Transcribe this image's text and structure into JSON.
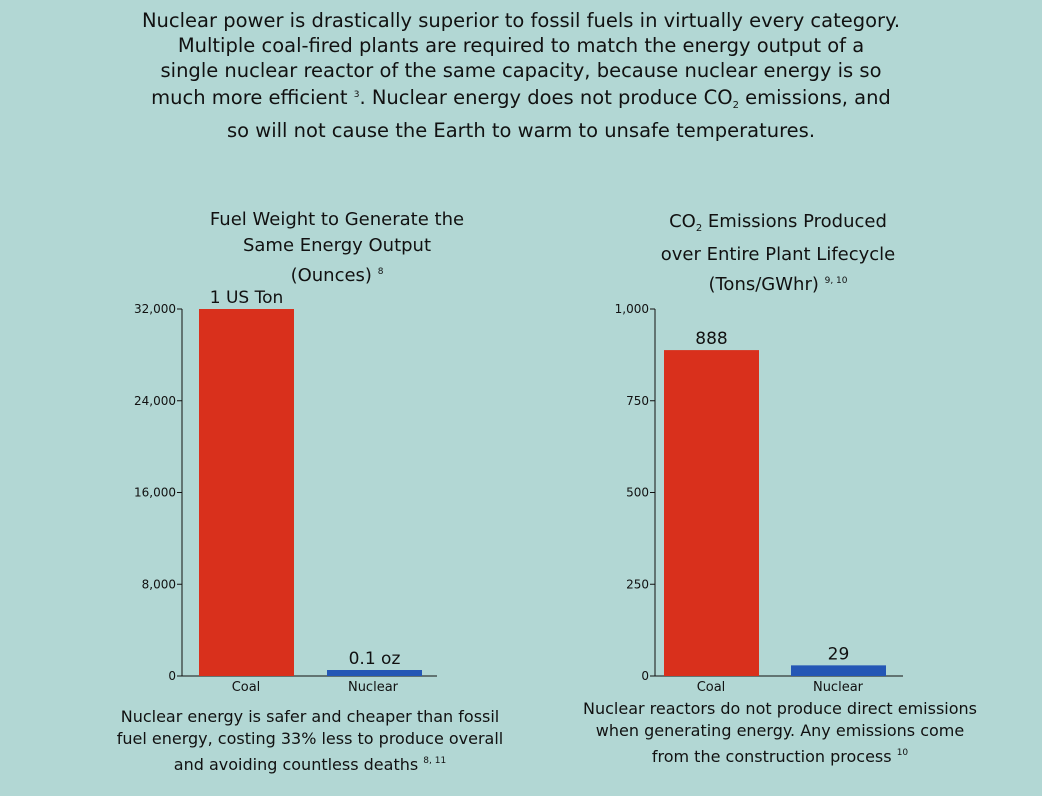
{
  "intro": {
    "line1": "Nuclear power is drastically superior to fossil fuels in virtually every category.",
    "line2": "Multiple coal-fired plants are required to match the energy output of a",
    "line3": "single nuclear reactor of the same capacity, because nuclear energy is so",
    "line4_a": "much more efficient",
    "line4_ref": "3",
    "line4_b": ". Nuclear energy does not produce CO",
    "line4_sub": "2",
    "line4_c": " emissions, and",
    "line5": "so will not cause the Earth to warm to unsafe temperatures."
  },
  "colors": {
    "background": "#b2d7d4",
    "coal": "#d9301c",
    "nuclear": "#2457b5"
  },
  "chart_data": [
    {
      "type": "bar",
      "title_line1": "Fuel Weight to Generate the",
      "title_line2": "Same Energy Output",
      "title_line3": "(Ounces)",
      "title_ref": "8",
      "categories": [
        "Coal",
        "Nuclear"
      ],
      "values": [
        32000,
        0.1
      ],
      "data_labels": [
        "1 US Ton",
        "0.1 oz"
      ],
      "ylim": [
        0,
        32000
      ],
      "yticks": [
        0,
        8000,
        16000,
        24000,
        32000
      ],
      "ytick_labels": [
        "0",
        "8,000",
        "16,000",
        "24,000",
        "32,000"
      ],
      "colors": [
        "#d9301c",
        "#2457b5"
      ],
      "note_line1": "Nuclear energy is safer and cheaper than fossil",
      "note_line2": "fuel energy, costing 33% less to produce overall",
      "note_line3": "and avoiding countless deaths",
      "note_ref": "8, 11"
    },
    {
      "type": "bar",
      "title_line1_a": "CO",
      "title_line1_sub": "2",
      "title_line1_b": " Emissions Produced",
      "title_line2": "over Entire Plant Lifecycle",
      "title_line3": "(Tons/GWhr)",
      "title_ref": "9, 10",
      "categories": [
        "Coal",
        "Nuclear"
      ],
      "values": [
        888,
        29
      ],
      "data_labels": [
        "888",
        "29"
      ],
      "ylim": [
        0,
        1000
      ],
      "yticks": [
        0,
        250,
        500,
        750,
        1000
      ],
      "ytick_labels": [
        "0",
        "250",
        "500",
        "750",
        "1,000"
      ],
      "colors": [
        "#d9301c",
        "#2457b5"
      ],
      "note_line1": "Nuclear reactors do not produce direct emissions",
      "note_line2": "when generating energy. Any emissions come",
      "note_line3": "from the construction process",
      "note_ref": "10"
    }
  ]
}
